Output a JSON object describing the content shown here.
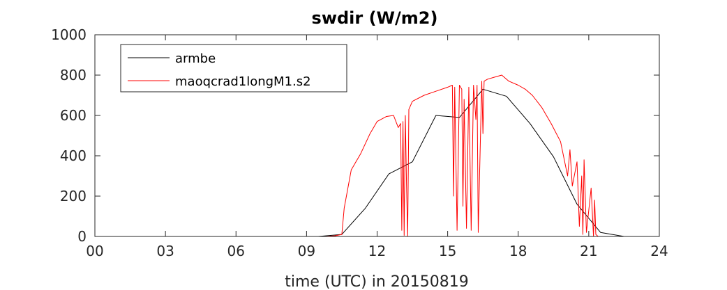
{
  "chart_data": {
    "type": "line",
    "title": "swdir  (W/m2)",
    "xlabel": "time (UTC) in 20150819",
    "ylabel": "",
    "xlim": [
      0,
      24
    ],
    "ylim": [
      0,
      1000
    ],
    "xticks": [
      0,
      3,
      6,
      9,
      12,
      15,
      18,
      21,
      24
    ],
    "xtick_labels": [
      "00",
      "03",
      "06",
      "09",
      "12",
      "15",
      "18",
      "21",
      "24"
    ],
    "yticks": [
      0,
      200,
      400,
      600,
      800,
      1000
    ],
    "ytick_labels": [
      "0",
      "200",
      "400",
      "600",
      "800",
      "1000"
    ],
    "grid": false,
    "legend_position": "top-left",
    "series": [
      {
        "name": "armbe",
        "color": "#000000",
        "x": [
          0,
          9.5,
          10.5,
          11.5,
          12.5,
          13.5,
          14.5,
          15.5,
          16.5,
          17.5,
          18.5,
          19.5,
          20.5,
          21.5,
          22.5,
          24
        ],
        "y": [
          0,
          0,
          10,
          140,
          310,
          370,
          600,
          590,
          730,
          695,
          560,
          395,
          160,
          20,
          0,
          0
        ]
      },
      {
        "name": "maoqcrad1longM1.s2",
        "color": "#ff0000",
        "x": [
          0,
          9.8,
          10.2,
          10.5,
          10.6,
          10.9,
          11.3,
          11.7,
          12.0,
          12.4,
          12.7,
          12.9,
          13.0,
          13.05,
          13.1,
          13.15,
          13.2,
          13.25,
          13.3,
          13.35,
          13.5,
          14.0,
          14.5,
          15.0,
          15.2,
          15.25,
          15.3,
          15.4,
          15.5,
          15.6,
          15.65,
          15.7,
          15.8,
          15.9,
          16.0,
          16.1,
          16.2,
          16.25,
          16.3,
          16.45,
          16.5,
          16.55,
          16.7,
          17.0,
          17.3,
          17.6,
          18.0,
          18.3,
          18.6,
          19.0,
          19.4,
          19.8,
          20.1,
          20.2,
          20.3,
          20.5,
          20.6,
          20.7,
          20.75,
          20.8,
          20.85,
          20.9,
          21.0,
          21.1,
          21.2,
          21.25,
          21.3,
          21.4,
          21.5,
          22.0,
          24
        ],
        "y": [
          0,
          0,
          3,
          10,
          140,
          330,
          410,
          510,
          570,
          595,
          600,
          540,
          560,
          30,
          570,
          5,
          600,
          260,
          0,
          630,
          670,
          700,
          720,
          740,
          750,
          200,
          740,
          30,
          750,
          730,
          150,
          680,
          40,
          740,
          30,
          750,
          580,
          750,
          20,
          770,
          510,
          770,
          780,
          790,
          800,
          770,
          750,
          730,
          700,
          640,
          560,
          470,
          300,
          430,
          250,
          370,
          50,
          300,
          10,
          380,
          200,
          20,
          130,
          240,
          0,
          180,
          10,
          0,
          0,
          0,
          0
        ]
      }
    ]
  }
}
